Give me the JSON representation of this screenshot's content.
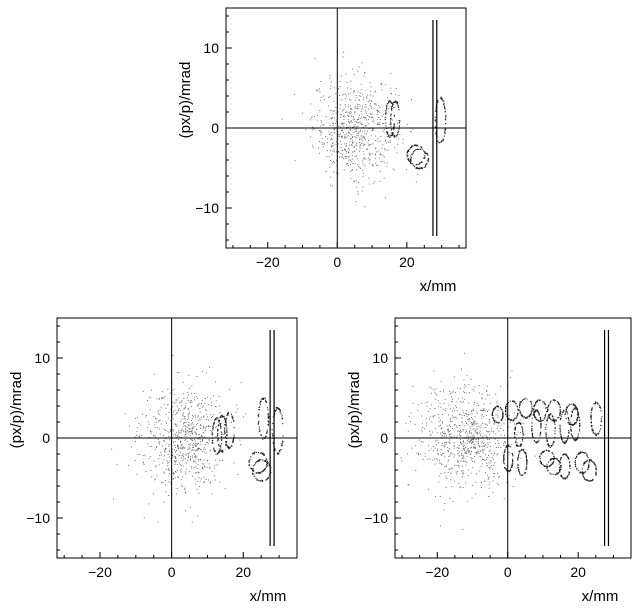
{
  "chart_data": [
    {
      "type": "scatter",
      "title": "",
      "xlabel": "x/mm",
      "ylabel": "(px/p)/mrad",
      "xlim": [
        -32,
        37
      ],
      "ylim": [
        -15,
        15
      ],
      "xticks": [
        -20,
        0,
        20
      ],
      "yticks": [
        -10,
        0,
        10
      ],
      "xtick_labels": [
        "−20",
        "0",
        "20"
      ],
      "ytick_labels": [
        "−10",
        "0",
        "10"
      ],
      "zero_lines": true,
      "vertical_lines_x": [
        27.5,
        28.6
      ],
      "vertical_lines_yrange": [
        -13.5,
        13.5
      ],
      "beam_core": {
        "x": 5,
        "y": 0,
        "sx": 6,
        "sy": 3.2,
        "n": 650
      },
      "rings": [
        {
          "x": 15,
          "y": 1.2,
          "rx": 1.3,
          "ry": 2.2
        },
        {
          "x": 16.5,
          "y": 1.2,
          "rx": 1.3,
          "ry": 2.2
        },
        {
          "x": 29.5,
          "y": 1.0,
          "rx": 1.5,
          "ry": 2.8
        },
        {
          "x": 22.5,
          "y": -3.3,
          "rx": 2.5,
          "ry": 1.2
        },
        {
          "x": 23.5,
          "y": -3.8,
          "rx": 2.5,
          "ry": 1.2
        }
      ]
    },
    {
      "type": "scatter",
      "title": "",
      "xlabel": "x/mm",
      "ylabel": "(px/p)/mrad",
      "xlim": [
        -32,
        35
      ],
      "ylim": [
        -15,
        15
      ],
      "xticks": [
        -20,
        0,
        20
      ],
      "yticks": [
        -10,
        0,
        10
      ],
      "xtick_labels": [
        "−20",
        "0",
        "20"
      ],
      "ytick_labels": [
        "−10",
        "0",
        "10"
      ],
      "zero_lines": true,
      "vertical_lines_x": [
        27.5,
        28.6
      ],
      "vertical_lines_yrange": [
        -13.5,
        13.5
      ],
      "beam_core": {
        "x": 3,
        "y": 0,
        "sx": 6,
        "sy": 3.3,
        "n": 700
      },
      "rings": [
        {
          "x": 12.5,
          "y": 0.3,
          "rx": 1.3,
          "ry": 2.2
        },
        {
          "x": 14,
          "y": 0.6,
          "rx": 1.3,
          "ry": 2.2
        },
        {
          "x": 16,
          "y": 1.0,
          "rx": 1.3,
          "ry": 2.2
        },
        {
          "x": 25.5,
          "y": 2.5,
          "rx": 1.4,
          "ry": 2.5
        },
        {
          "x": 29.5,
          "y": 1.0,
          "rx": 1.5,
          "ry": 2.8
        },
        {
          "x": 24,
          "y": -3.0,
          "rx": 2.5,
          "ry": 1.3
        },
        {
          "x": 25,
          "y": -4.0,
          "rx": 2.5,
          "ry": 1.3
        }
      ]
    },
    {
      "type": "scatter",
      "title": "",
      "xlabel": "x/mm",
      "ylabel": "(px/p)/mrad",
      "xlim": [
        -32,
        35
      ],
      "ylim": [
        -15,
        15
      ],
      "xticks": [
        -20,
        0,
        20
      ],
      "yticks": [
        -10,
        0,
        10
      ],
      "xtick_labels": [
        "−20",
        "0",
        "20"
      ],
      "ytick_labels": [
        "−10",
        "0",
        "10"
      ],
      "zero_lines": true,
      "vertical_lines_x": [
        27.5,
        28.6
      ],
      "vertical_lines_yrange": [
        -13.5,
        13.5
      ],
      "beam_core": {
        "x": -12,
        "y": 0,
        "sx": 7,
        "sy": 3.3,
        "n": 750
      },
      "rings": [
        {
          "x": -3,
          "y": 3.0,
          "rx": 1.5,
          "ry": 1.0
        },
        {
          "x": 1,
          "y": 3.5,
          "rx": 1.8,
          "ry": 1.2
        },
        {
          "x": 5,
          "y": 3.8,
          "rx": 1.8,
          "ry": 1.2
        },
        {
          "x": 9,
          "y": 3.5,
          "rx": 1.8,
          "ry": 1.3
        },
        {
          "x": 13,
          "y": 3.5,
          "rx": 1.8,
          "ry": 1.3
        },
        {
          "x": 18,
          "y": 3.0,
          "rx": 1.8,
          "ry": 1.3
        },
        {
          "x": 25,
          "y": 2.5,
          "rx": 1.5,
          "ry": 2.0
        },
        {
          "x": 3,
          "y": 0.5,
          "rx": 1.2,
          "ry": 1.5
        },
        {
          "x": 8,
          "y": 1.5,
          "rx": 1.3,
          "ry": 2.0
        },
        {
          "x": 12,
          "y": 1.0,
          "rx": 1.3,
          "ry": 2.0
        },
        {
          "x": 16,
          "y": 1.5,
          "rx": 1.3,
          "ry": 2.0
        },
        {
          "x": 19,
          "y": 1.8,
          "rx": 1.3,
          "ry": 2.0
        },
        {
          "x": 0,
          "y": -2.5,
          "rx": 1.3,
          "ry": 1.6
        },
        {
          "x": 4,
          "y": -3.0,
          "rx": 1.3,
          "ry": 1.6
        },
        {
          "x": 11,
          "y": -2.5,
          "rx": 2.0,
          "ry": 1.0
        },
        {
          "x": 13,
          "y": -3.5,
          "rx": 2.0,
          "ry": 1.0
        },
        {
          "x": 16,
          "y": -3.5,
          "rx": 1.5,
          "ry": 1.5
        },
        {
          "x": 21,
          "y": -3.0,
          "rx": 2.0,
          "ry": 1.3
        },
        {
          "x": 23,
          "y": -4.0,
          "rx": 2.0,
          "ry": 1.3
        }
      ]
    }
  ]
}
